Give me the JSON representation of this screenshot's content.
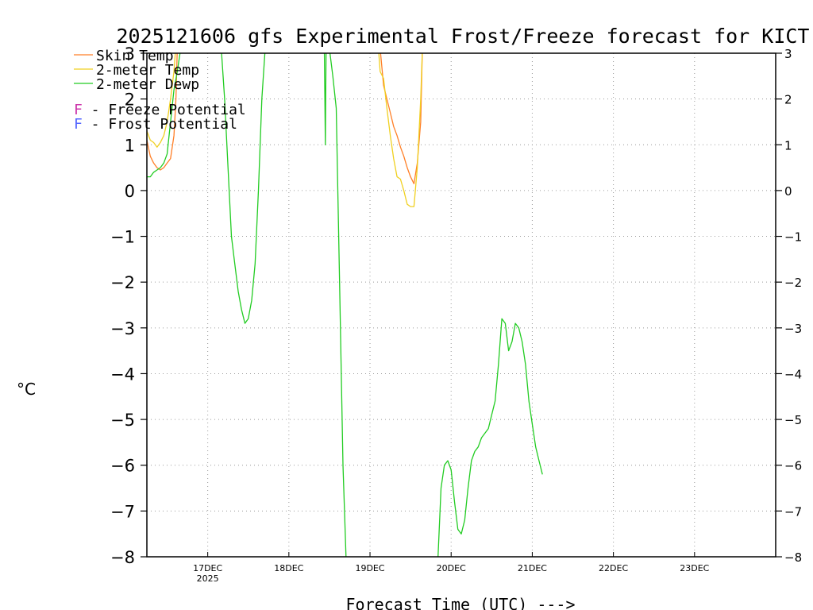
{
  "chart_data": {
    "type": "line",
    "title": "2025121606 gfs Experimental Frost/Freeze forecast for KICT",
    "xlabel": "Forecast Time (UTC) --->",
    "ylabel": "°C",
    "ylim": [
      -8,
      3
    ],
    "yticks": [
      3,
      2,
      1,
      0,
      -1,
      -2,
      -3,
      -4,
      -5,
      -6,
      -7,
      -8
    ],
    "ytick_labels": [
      "3",
      "2",
      "1",
      "0",
      "−1",
      "−2",
      "−3",
      "−4",
      "−5",
      "−6",
      "−7",
      "−8"
    ],
    "x_unit": "hours since 2025-12-16 06Z",
    "xlim": [
      0,
      186
    ],
    "xticks": [
      {
        "x": 18,
        "label": "17DEC",
        "sublabel": "2025"
      },
      {
        "x": 42,
        "label": "18DEC",
        "sublabel": ""
      },
      {
        "x": 66,
        "label": "19DEC",
        "sublabel": ""
      },
      {
        "x": 90,
        "label": "20DEC",
        "sublabel": ""
      },
      {
        "x": 114,
        "label": "21DEC",
        "sublabel": ""
      },
      {
        "x": 138,
        "label": "22DEC",
        "sublabel": ""
      },
      {
        "x": 162,
        "label": "23DEC",
        "sublabel": ""
      }
    ],
    "grid": true,
    "legend": {
      "placement": "top-left",
      "items": [
        {
          "label": "Skin Temp",
          "color": "#ff7f27"
        },
        {
          "label": "2-meter Temp",
          "color": "#f0d020"
        },
        {
          "label": "2-meter Dewp",
          "color": "#22cc22"
        }
      ],
      "potentials": [
        {
          "letter": "F",
          "label": " - Freeze Potential",
          "color": "#cc33aa"
        },
        {
          "letter": "F",
          "label": " - Frost Potential",
          "color": "#5566ff"
        }
      ]
    },
    "series": [
      {
        "name": "Skin Temp",
        "color": "#ff7f27",
        "segments": [
          [
            [
              0,
              1.1
            ],
            [
              1,
              0.75
            ],
            [
              2,
              0.6
            ],
            [
              3,
              0.5
            ],
            [
              4,
              0.45
            ],
            [
              5,
              0.5
            ],
            [
              6,
              0.6
            ],
            [
              7,
              0.7
            ],
            [
              8,
              1.2
            ],
            [
              8.6,
              2.0
            ],
            [
              9,
              3.1
            ]
          ],
          [
            [
              69,
              3.1
            ],
            [
              70,
              2.3
            ],
            [
              71,
              2.0
            ],
            [
              72,
              1.7
            ],
            [
              73,
              1.4
            ],
            [
              74,
              1.2
            ],
            [
              75,
              0.95
            ],
            [
              76,
              0.75
            ],
            [
              77,
              0.5
            ],
            [
              78,
              0.3
            ],
            [
              79,
              0.15
            ],
            [
              80,
              0.6
            ],
            [
              81,
              1.5
            ],
            [
              81.5,
              3.1
            ]
          ]
        ]
      },
      {
        "name": "2-meter Temp",
        "color": "#f0d020",
        "segments": [
          [
            [
              0,
              1.3
            ],
            [
              1,
              1.1
            ],
            [
              2,
              1.05
            ],
            [
              3,
              0.95
            ],
            [
              4,
              1.05
            ],
            [
              5,
              1.2
            ],
            [
              6,
              1.5
            ],
            [
              7,
              2.0
            ],
            [
              8,
              2.6
            ],
            [
              8.5,
              3.1
            ]
          ],
          [
            [
              68.5,
              3.1
            ],
            [
              69,
              2.6
            ],
            [
              70,
              2.45
            ],
            [
              71,
              1.8
            ],
            [
              72,
              1.2
            ],
            [
              73,
              0.7
            ],
            [
              74,
              0.3
            ],
            [
              75,
              0.25
            ],
            [
              76,
              0.0
            ],
            [
              77,
              -0.3
            ],
            [
              78,
              -0.35
            ],
            [
              79,
              -0.35
            ],
            [
              80,
              0.5
            ],
            [
              81,
              2.0
            ],
            [
              81.5,
              3.1
            ]
          ]
        ]
      },
      {
        "name": "2-meter Dewp",
        "color": "#22cc22",
        "segments": [
          [
            [
              0,
              0.3
            ],
            [
              1,
              0.3
            ],
            [
              2,
              0.4
            ],
            [
              3,
              0.45
            ],
            [
              4,
              0.5
            ],
            [
              5,
              0.6
            ],
            [
              6,
              0.8
            ],
            [
              7,
              1.5
            ],
            [
              8,
              2.2
            ],
            [
              9,
              2.6
            ],
            [
              10,
              3.1
            ]
          ],
          [
            [
              22,
              3.1
            ],
            [
              23,
              2.0
            ],
            [
              24,
              0.5
            ],
            [
              25,
              -1.0
            ],
            [
              26,
              -1.6
            ],
            [
              27,
              -2.2
            ],
            [
              28,
              -2.6
            ],
            [
              29,
              -2.9
            ],
            [
              30,
              -2.8
            ],
            [
              31,
              -2.4
            ],
            [
              32,
              -1.6
            ],
            [
              33,
              0.0
            ],
            [
              34,
              2.0
            ],
            [
              35,
              3.1
            ]
          ],
          [
            [
              52.5,
              3.1
            ],
            [
              52.8,
              1.0
            ],
            [
              53,
              3.1
            ]
          ],
          [
            [
              54,
              3.1
            ],
            [
              55,
              2.5
            ],
            [
              56,
              1.8
            ],
            [
              57,
              -2.0
            ],
            [
              58,
              -6.0
            ],
            [
              59,
              -8.2
            ]
          ],
          [
            [
              86,
              -8.2
            ],
            [
              87,
              -6.5
            ],
            [
              88,
              -6.0
            ],
            [
              89,
              -5.9
            ],
            [
              90,
              -6.1
            ],
            [
              91,
              -6.8
            ],
            [
              92,
              -7.4
            ],
            [
              93,
              -7.5
            ],
            [
              94,
              -7.2
            ],
            [
              95,
              -6.5
            ],
            [
              96,
              -5.9
            ],
            [
              97,
              -5.7
            ],
            [
              98,
              -5.6
            ],
            [
              99,
              -5.4
            ],
            [
              100,
              -5.3
            ],
            [
              101,
              -5.2
            ],
            [
              102,
              -4.9
            ],
            [
              103,
              -4.6
            ],
            [
              104,
              -3.8
            ],
            [
              105,
              -2.8
            ],
            [
              106,
              -2.9
            ],
            [
              107,
              -3.5
            ],
            [
              108,
              -3.3
            ],
            [
              109,
              -2.9
            ],
            [
              110,
              -3.0
            ],
            [
              111,
              -3.3
            ],
            [
              112,
              -3.8
            ],
            [
              113,
              -4.6
            ],
            [
              114,
              -5.1
            ],
            [
              115,
              -5.6
            ],
            [
              116,
              -5.9
            ],
            [
              117,
              -6.2
            ]
          ]
        ]
      }
    ]
  }
}
